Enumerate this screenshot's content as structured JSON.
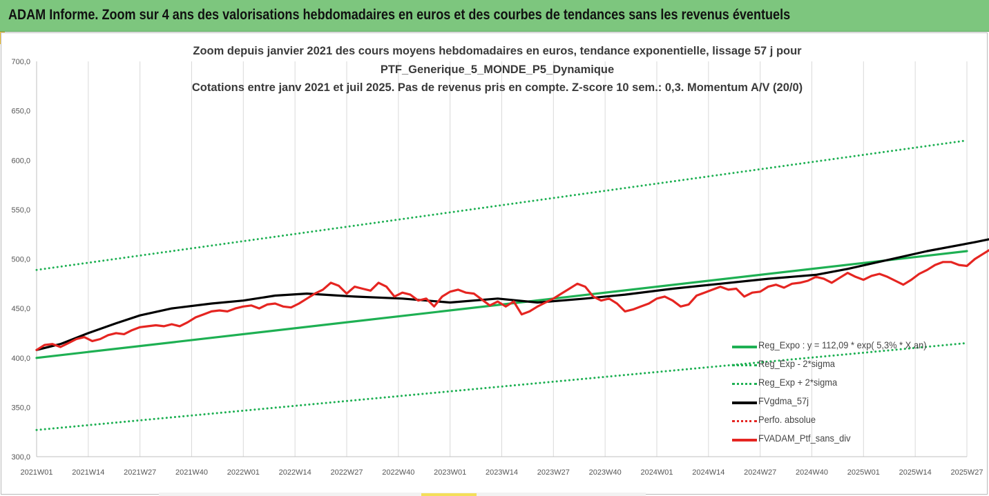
{
  "banner": {
    "title": "ADAM Informe. Zoom sur 4 ans des valorisations hebdomadaires en euros et des courbes de tendances sans les revenus éventuels"
  },
  "chart_data": {
    "type": "line",
    "title_lines": [
      "Zoom depuis janvier 2021 des cours moyens hebdomadaires  en euros, tendance exponentielle, lissage 57 j pour",
      "PTF_Generique_5_MONDE_P5_Dynamique",
      "Cotations entre janv 2021 et juil 2025. Pas de revenus pris en compte. Z-score 10 sem.: 0,3. Momentum A/V (20/0)"
    ],
    "ylim": [
      300,
      700
    ],
    "y_ticks": [
      "300,0",
      "350,0",
      "400,0",
      "450,0",
      "500,0",
      "550,0",
      "600,0",
      "650,0",
      "700,0"
    ],
    "x_ticks": [
      "2021W01",
      "2021W14",
      "2021W27",
      "2021W40",
      "2022W01",
      "2022W14",
      "2022W27",
      "2022W40",
      "2023W01",
      "2023W14",
      "2023W27",
      "2023W40",
      "2024W01",
      "2024W14",
      "2024W27",
      "2024W40",
      "2025W01",
      "2025W14",
      "2025W27"
    ],
    "grid": "vertical",
    "legend_position": "bottom-right",
    "series": [
      {
        "name": "Reg_Expo : y = 112,09 * exp( 5,3% *  X  an)",
        "color": "#1eb053",
        "style": "solid",
        "points": [
          [
            0,
            400
          ],
          [
            234,
            508
          ]
        ]
      },
      {
        "name": "Reg_Exp - 2*sigma",
        "color": "#1eb053",
        "style": "dotted",
        "points": [
          [
            0,
            327
          ],
          [
            234,
            415
          ]
        ]
      },
      {
        "name": "Reg_Exp + 2*sigma",
        "color": "#1eb053",
        "style": "dotted",
        "points": [
          [
            0,
            489
          ],
          [
            234,
            620
          ]
        ]
      },
      {
        "name": "FVgdma_57j",
        "color": "#000000",
        "style": "solid",
        "points": [
          [
            0,
            408
          ],
          [
            6,
            414
          ],
          [
            13,
            425
          ],
          [
            20,
            435
          ],
          [
            26,
            443
          ],
          [
            34,
            450
          ],
          [
            44,
            455
          ],
          [
            52,
            458
          ],
          [
            60,
            463
          ],
          [
            68,
            465
          ],
          [
            80,
            462
          ],
          [
            92,
            460
          ],
          [
            104,
            456
          ],
          [
            116,
            460
          ],
          [
            126,
            456
          ],
          [
            138,
            460
          ],
          [
            148,
            464
          ],
          [
            160,
            470
          ],
          [
            172,
            475
          ],
          [
            184,
            480
          ],
          [
            196,
            484
          ],
          [
            204,
            490
          ],
          [
            214,
            499
          ],
          [
            224,
            508
          ],
          [
            236,
            517
          ],
          [
            248,
            527
          ],
          [
            258,
            533
          ],
          [
            270,
            536
          ],
          [
            282,
            542
          ],
          [
            294,
            551
          ],
          [
            304,
            558
          ],
          [
            312,
            563
          ],
          [
            322,
            565
          ],
          [
            330,
            563
          ],
          [
            334,
            557
          ],
          [
            340,
            558
          ],
          [
            346,
            561
          ],
          [
            352,
            563
          ],
          [
            356,
            563
          ]
        ]
      },
      {
        "name": "Perfo. absolue",
        "color": "#e52521",
        "style": "dotted",
        "points": []
      },
      {
        "name": "FVADAM_Ptf_sans_div",
        "color": "#e52521",
        "style": "solid",
        "points": [
          [
            0,
            408
          ],
          [
            2,
            413
          ],
          [
            4,
            414
          ],
          [
            6,
            411
          ],
          [
            8,
            415
          ],
          [
            10,
            419
          ],
          [
            12,
            421
          ],
          [
            14,
            417
          ],
          [
            16,
            419
          ],
          [
            18,
            423
          ],
          [
            20,
            425
          ],
          [
            22,
            424
          ],
          [
            24,
            428
          ],
          [
            26,
            431
          ],
          [
            28,
            432
          ],
          [
            30,
            433
          ],
          [
            32,
            432
          ],
          [
            34,
            434
          ],
          [
            36,
            432
          ],
          [
            38,
            436
          ],
          [
            40,
            441
          ],
          [
            42,
            444
          ],
          [
            44,
            447
          ],
          [
            46,
            448
          ],
          [
            48,
            447
          ],
          [
            50,
            450
          ],
          [
            52,
            452
          ],
          [
            54,
            453
          ],
          [
            56,
            450
          ],
          [
            58,
            454
          ],
          [
            60,
            455
          ],
          [
            62,
            452
          ],
          [
            64,
            451
          ],
          [
            66,
            455
          ],
          [
            68,
            460
          ],
          [
            70,
            465
          ],
          [
            72,
            469
          ],
          [
            74,
            476
          ],
          [
            76,
            473
          ],
          [
            78,
            465
          ],
          [
            80,
            472
          ],
          [
            82,
            470
          ],
          [
            84,
            468
          ],
          [
            86,
            476
          ],
          [
            88,
            472
          ],
          [
            90,
            462
          ],
          [
            92,
            466
          ],
          [
            94,
            464
          ],
          [
            96,
            458
          ],
          [
            98,
            460
          ],
          [
            100,
            452
          ],
          [
            102,
            462
          ],
          [
            104,
            467
          ],
          [
            106,
            469
          ],
          [
            108,
            466
          ],
          [
            110,
            465
          ],
          [
            112,
            459
          ],
          [
            114,
            453
          ],
          [
            116,
            457
          ],
          [
            118,
            452
          ],
          [
            120,
            457
          ],
          [
            122,
            444
          ],
          [
            124,
            447
          ],
          [
            126,
            452
          ],
          [
            128,
            456
          ],
          [
            130,
            460
          ],
          [
            132,
            465
          ],
          [
            134,
            470
          ],
          [
            136,
            475
          ],
          [
            138,
            472
          ],
          [
            140,
            462
          ],
          [
            142,
            458
          ],
          [
            144,
            460
          ],
          [
            146,
            455
          ],
          [
            148,
            447
          ],
          [
            150,
            449
          ],
          [
            152,
            452
          ],
          [
            154,
            455
          ],
          [
            156,
            460
          ],
          [
            158,
            462
          ],
          [
            160,
            458
          ],
          [
            162,
            452
          ],
          [
            164,
            454
          ],
          [
            166,
            463
          ],
          [
            168,
            466
          ],
          [
            170,
            469
          ],
          [
            172,
            472
          ],
          [
            174,
            469
          ],
          [
            176,
            470
          ],
          [
            178,
            462
          ],
          [
            180,
            466
          ],
          [
            182,
            467
          ],
          [
            184,
            472
          ],
          [
            186,
            474
          ],
          [
            188,
            471
          ],
          [
            190,
            475
          ],
          [
            192,
            476
          ],
          [
            194,
            478
          ],
          [
            196,
            482
          ],
          [
            198,
            480
          ],
          [
            200,
            476
          ],
          [
            202,
            481
          ],
          [
            204,
            486
          ],
          [
            206,
            482
          ],
          [
            208,
            479
          ],
          [
            210,
            483
          ],
          [
            212,
            485
          ],
          [
            214,
            482
          ],
          [
            216,
            478
          ],
          [
            218,
            474
          ],
          [
            220,
            479
          ],
          [
            222,
            485
          ],
          [
            224,
            489
          ],
          [
            226,
            494
          ],
          [
            228,
            497
          ],
          [
            230,
            497
          ],
          [
            232,
            494
          ],
          [
            234,
            493
          ],
          [
            236,
            500
          ],
          [
            238,
            505
          ],
          [
            240,
            510
          ],
          [
            242,
            513
          ],
          [
            244,
            516
          ],
          [
            246,
            520
          ],
          [
            248,
            524
          ],
          [
            250,
            527
          ],
          [
            252,
            526
          ],
          [
            254,
            524
          ],
          [
            256,
            526
          ],
          [
            258,
            530
          ],
          [
            260,
            536
          ],
          [
            262,
            533
          ],
          [
            264,
            532
          ],
          [
            266,
            534
          ],
          [
            268,
            537
          ],
          [
            270,
            539
          ],
          [
            272,
            538
          ],
          [
            274,
            541
          ],
          [
            276,
            538
          ],
          [
            278,
            520
          ],
          [
            280,
            534
          ],
          [
            282,
            530
          ],
          [
            284,
            536
          ],
          [
            286,
            531
          ],
          [
            288,
            537
          ],
          [
            290,
            545
          ],
          [
            292,
            550
          ],
          [
            294,
            554
          ],
          [
            296,
            551
          ],
          [
            298,
            555
          ],
          [
            300,
            555
          ],
          [
            302,
            559
          ],
          [
            304,
            565
          ],
          [
            306,
            561
          ],
          [
            308,
            561
          ],
          [
            310,
            565
          ],
          [
            312,
            573
          ],
          [
            314,
            575
          ],
          [
            316,
            581
          ],
          [
            318,
            585
          ],
          [
            320,
            578
          ],
          [
            322,
            568
          ],
          [
            324,
            562
          ],
          [
            326,
            568
          ],
          [
            328,
            550
          ],
          [
            330,
            526
          ],
          [
            332,
            535
          ],
          [
            334,
            540
          ],
          [
            336,
            548
          ],
          [
            338,
            556
          ],
          [
            340,
            566
          ],
          [
            342,
            568
          ],
          [
            344,
            567
          ],
          [
            346,
            566
          ],
          [
            348,
            568
          ],
          [
            350,
            564
          ],
          [
            352,
            562
          ],
          [
            354,
            565
          ],
          [
            356,
            566
          ]
        ]
      }
    ]
  }
}
